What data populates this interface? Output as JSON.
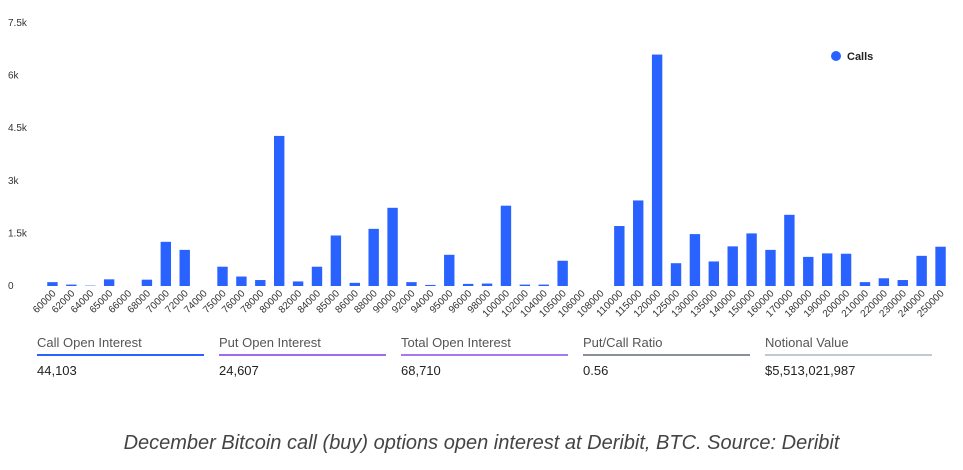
{
  "chart_data": {
    "type": "bar",
    "title": "",
    "xlabel": "",
    "ylabel": "",
    "ylim": [
      0,
      7500
    ],
    "y_ticks": [
      {
        "value": 0,
        "label": "0"
      },
      {
        "value": 1500,
        "label": "1.5k"
      },
      {
        "value": 3000,
        "label": "3k"
      },
      {
        "value": 4500,
        "label": "4.5k"
      },
      {
        "value": 6000,
        "label": "6k"
      },
      {
        "value": 7500,
        "label": "7.5k"
      }
    ],
    "grid": false,
    "legend_position": "top-right",
    "categories": [
      "60000",
      "62000",
      "64000",
      "65000",
      "66000",
      "68000",
      "70000",
      "72000",
      "74000",
      "75000",
      "76000",
      "78000",
      "80000",
      "82000",
      "84000",
      "85000",
      "86000",
      "88000",
      "90000",
      "92000",
      "94000",
      "95000",
      "96000",
      "98000",
      "100000",
      "102000",
      "104000",
      "105000",
      "106000",
      "108000",
      "110000",
      "115000",
      "120000",
      "125000",
      "130000",
      "135000",
      "140000",
      "150000",
      "160000",
      "170000",
      "180000",
      "190000",
      "200000",
      "210000",
      "220000",
      "230000",
      "240000",
      "250000"
    ],
    "series": [
      {
        "name": "Calls",
        "color": "#2962ff",
        "values": [
          110,
          40,
          10,
          190,
          0,
          180,
          1260,
          1030,
          0,
          550,
          270,
          170,
          4280,
          130,
          550,
          1440,
          90,
          1630,
          2230,
          110,
          30,
          890,
          60,
          70,
          2290,
          40,
          40,
          720,
          0,
          0,
          1710,
          2440,
          6600,
          650,
          1480,
          700,
          1130,
          1500,
          1030,
          2030,
          830,
          930,
          920,
          110,
          220,
          170,
          860,
          1120
        ]
      }
    ]
  },
  "stats": [
    {
      "label": "Call Open Interest",
      "value": "44,103",
      "color": "#2962ff"
    },
    {
      "label": "Put Open Interest",
      "value": "24,607",
      "color": "#9b6cf0"
    },
    {
      "label": "Total Open Interest",
      "value": "68,710",
      "color": "#a878f2"
    },
    {
      "label": "Put/Call Ratio",
      "value": "0.56",
      "color": "#8a8f9a"
    },
    {
      "label": "Notional Value",
      "value": "$5,513,021,987",
      "color": "#c4c8d0"
    }
  ],
  "caption": "December Bitcoin call (buy) options open interest at Deribit, BTC. Source: Deribit"
}
